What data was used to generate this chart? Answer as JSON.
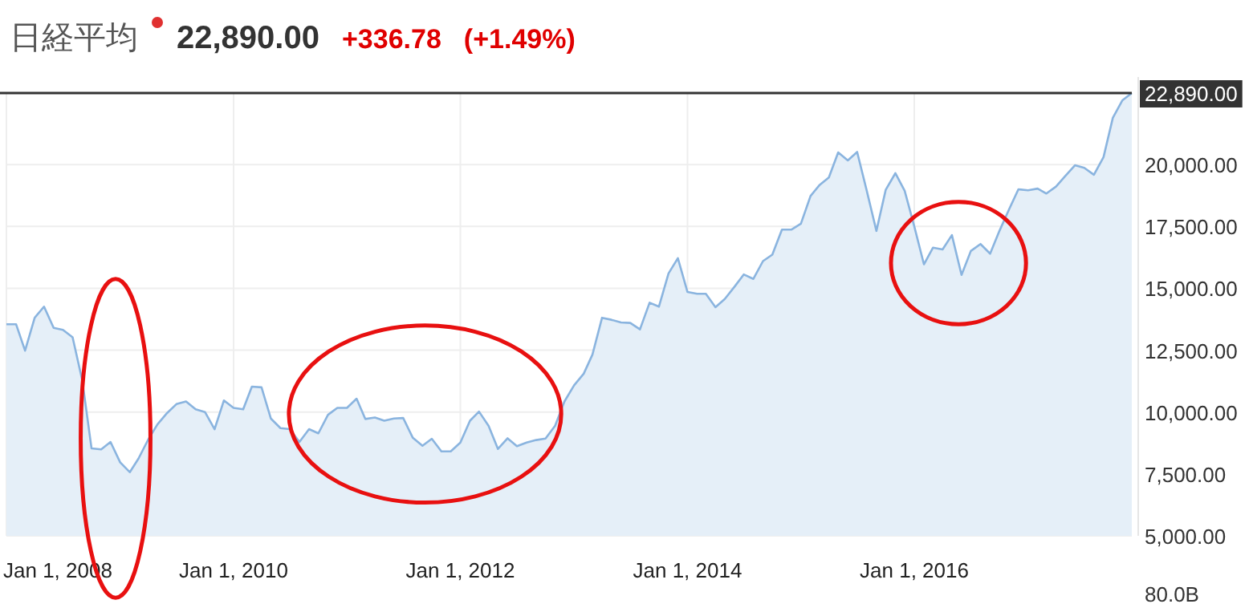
{
  "chart_data": {
    "type": "area",
    "title": "日経平均",
    "annotations": [
      "22,890.00",
      "+336.78",
      "(+1.49%)",
      "80.0B"
    ],
    "x": [
      "2008-01",
      "2008-02",
      "2008-03",
      "2008-04",
      "2008-05",
      "2008-06",
      "2008-07",
      "2008-08",
      "2008-09",
      "2008-10",
      "2008-11",
      "2008-12",
      "2009-01",
      "2009-02",
      "2009-03",
      "2009-04",
      "2009-05",
      "2009-06",
      "2009-07",
      "2009-08",
      "2009-09",
      "2009-10",
      "2009-11",
      "2009-12",
      "2010-01",
      "2010-02",
      "2010-03",
      "2010-04",
      "2010-05",
      "2010-06",
      "2010-07",
      "2010-08",
      "2010-09",
      "2010-10",
      "2010-11",
      "2010-12",
      "2011-01",
      "2011-02",
      "2011-03",
      "2011-04",
      "2011-05",
      "2011-06",
      "2011-07",
      "2011-08",
      "2011-09",
      "2011-10",
      "2011-11",
      "2011-12",
      "2012-01",
      "2012-02",
      "2012-03",
      "2012-04",
      "2012-05",
      "2012-06",
      "2012-07",
      "2012-08",
      "2012-09",
      "2012-10",
      "2012-11",
      "2012-12",
      "2013-01",
      "2013-02",
      "2013-03",
      "2013-04",
      "2013-05",
      "2013-06",
      "2013-07",
      "2013-08",
      "2013-09",
      "2013-10",
      "2013-11",
      "2013-12",
      "2014-01",
      "2014-02",
      "2014-03",
      "2014-04",
      "2014-05",
      "2014-06",
      "2014-07",
      "2014-08",
      "2014-09",
      "2014-10",
      "2014-11",
      "2014-12",
      "2015-01",
      "2015-02",
      "2015-03",
      "2015-04",
      "2015-05",
      "2015-06",
      "2015-07",
      "2015-08",
      "2015-09",
      "2015-10",
      "2015-11",
      "2015-12",
      "2016-01",
      "2016-02",
      "2016-03",
      "2016-04",
      "2016-05",
      "2016-06",
      "2016-07",
      "2016-08",
      "2016-09",
      "2016-10",
      "2016-11",
      "2016-12",
      "2017-01",
      "2017-02",
      "2017-03",
      "2017-04",
      "2017-05",
      "2017-06",
      "2017-07",
      "2017-08",
      "2017-09",
      "2017-10",
      "2017-11",
      "2017-12"
    ],
    "series": [
      {
        "color": "#8ab4df",
        "values": [
          13550,
          13550,
          12480,
          13810,
          14260,
          13400,
          13320,
          13020,
          11290,
          8530,
          8490,
          8790,
          7970,
          7570,
          8120,
          8880,
          9500,
          9960,
          10320,
          10430,
          10110,
          10000,
          9310,
          10470,
          10170,
          10110,
          11030,
          11000,
          9740,
          9350,
          9310,
          8790,
          9310,
          9140,
          9890,
          10170,
          10170,
          10540,
          9720,
          9780,
          9650,
          9740,
          9760,
          8960,
          8640,
          8920,
          8410,
          8410,
          8770,
          9650,
          10020,
          9440,
          8510,
          8940,
          8620,
          8770,
          8870,
          8930,
          9450,
          10430,
          11080,
          11550,
          12320,
          13810,
          13730,
          13620,
          13600,
          13340,
          14420,
          14260,
          15600,
          16220,
          14850,
          14780,
          14780,
          14240,
          14570,
          15060,
          15560,
          15380,
          16100,
          16360,
          17370,
          17370,
          17610,
          18730,
          19160,
          19480,
          20490,
          20170,
          20510,
          18940,
          17320,
          18980,
          19650,
          18940,
          17500,
          15970,
          16640,
          16570,
          17150,
          15540,
          16510,
          16790,
          16400,
          17320,
          18190,
          19000,
          18960,
          19030,
          18830,
          19110,
          19540,
          19970,
          19870,
          19590,
          20300,
          21890,
          22600,
          22890
        ]
      }
    ],
    "xlim": [
      "2008-01",
      "2017-12"
    ],
    "xticks": [
      {
        "value": "2008-01-01",
        "label": "Jan 1, 2008"
      },
      {
        "value": "2010-01-01",
        "label": "Jan 1, 2010"
      },
      {
        "value": "2012-01-01",
        "label": "Jan 1, 2012"
      },
      {
        "value": "2014-01-01",
        "label": "Jan 1, 2014"
      },
      {
        "value": "2016-01-01",
        "label": "Jan 1, 2016"
      }
    ],
    "ylim": [
      5000,
      22890
    ],
    "yticks": [
      {
        "value": 5000,
        "label": "5,000.00"
      },
      {
        "value": 7500,
        "label": "7,500.00"
      },
      {
        "value": 10000,
        "label": "10,000.00"
      },
      {
        "value": 12500,
        "label": "12,500.00"
      },
      {
        "value": 15000,
        "label": "15,000.00"
      },
      {
        "value": 17500,
        "label": "17,500.00"
      },
      {
        "value": 20000,
        "label": "20,000.00"
      }
    ],
    "ref_lines": [
      {
        "axis": "y",
        "value": 22890,
        "label": "22,890.00",
        "color": "#333333"
      }
    ],
    "grid": true
  }
}
